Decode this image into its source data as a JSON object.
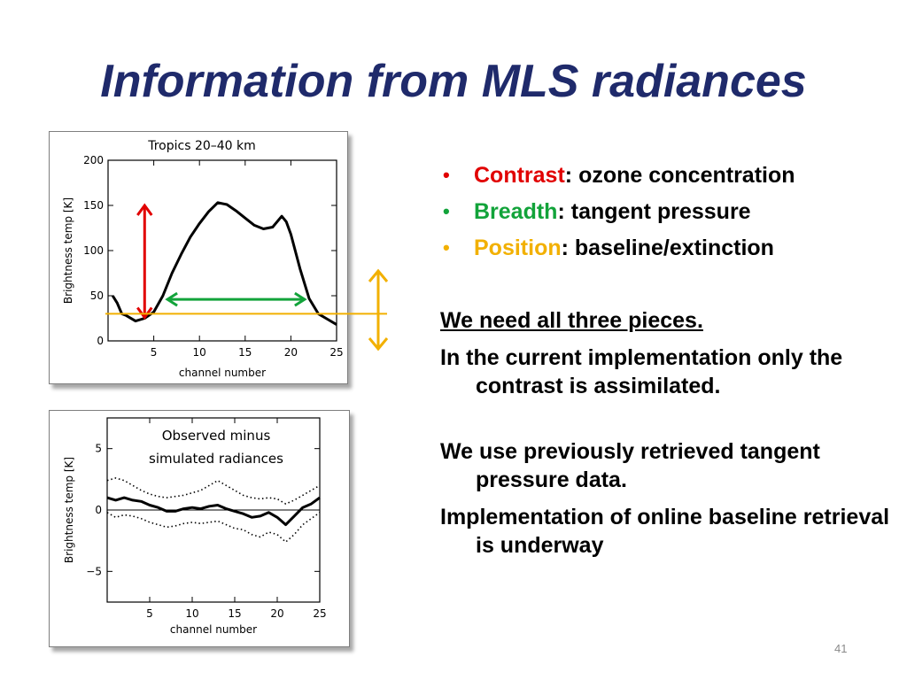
{
  "slide": {
    "title": "Information from MLS radiances",
    "page_number": "41"
  },
  "bullets": [
    {
      "term": "Contrast",
      "rest": ": ozone concentration",
      "color": "#e10000"
    },
    {
      "term": "Breadth",
      "rest": ": tangent pressure",
      "color": "#12a33a"
    },
    {
      "term": "Position",
      "rest": ": baseline/extinction",
      "color": "#f2b000"
    }
  ],
  "paragraphs": {
    "p1": "We need all three pieces.",
    "p2": "In the current implementation only the contrast is assimilated.",
    "p3": "We use previously retrieved tangent pressure data.",
    "p4": "Implementation of online baseline retrieval is underway"
  },
  "chart_data": [
    {
      "type": "line",
      "title": "Tropics   20–40  km",
      "xlabel": "channel number",
      "ylabel": "Brightness temp  [K]",
      "xlim": [
        0,
        25
      ],
      "ylim": [
        0,
        200
      ],
      "xticks": [
        "5",
        "10",
        "15",
        "20",
        "25"
      ],
      "yticks": [
        "0",
        "50",
        "100",
        "150",
        "200"
      ],
      "series": [
        {
          "x": [
            0.5,
            1,
            1.5,
            2,
            3,
            4,
            5,
            6,
            7,
            8,
            9,
            10,
            11,
            12,
            13,
            14,
            15,
            16,
            17,
            18,
            19,
            19.5,
            20,
            21,
            22,
            23,
            24,
            25
          ],
          "values": [
            50,
            42,
            30,
            28,
            22,
            25,
            32,
            50,
            75,
            96,
            115,
            130,
            143,
            153,
            151,
            144,
            136,
            128,
            124,
            126,
            138,
            132,
            118,
            80,
            47,
            30,
            24,
            18
          ]
        }
      ],
      "annotations": {
        "contrast_arrow": {
          "x": 4,
          "y_from": 26,
          "y_to": 150,
          "color": "#e10000"
        },
        "breadth_arrow": {
          "x_from": 6.5,
          "x_to": 21.5,
          "y": 46,
          "color": "#12a33a"
        },
        "baseline_line": {
          "y": 30,
          "color": "#f2b000"
        }
      }
    },
    {
      "type": "line",
      "title": "",
      "xlabel": "channel number",
      "ylabel": "Brightness temp  [K]",
      "xlim": [
        0,
        25
      ],
      "ylim": [
        -7.5,
        7.5
      ],
      "xticks": [
        "5",
        "10",
        "15",
        "20",
        "25"
      ],
      "yticks": [
        "−5",
        "0",
        "5"
      ],
      "legend_text": [
        "Observed minus",
        "simulated radiances"
      ],
      "series": [
        {
          "style": "solid",
          "x": [
            0,
            1,
            2,
            3,
            4,
            5,
            6,
            7,
            8,
            9,
            10,
            11,
            12,
            13,
            14,
            15,
            16,
            17,
            18,
            19,
            20,
            21,
            22,
            23,
            24,
            25
          ],
          "values": [
            1.0,
            0.8,
            1.0,
            0.8,
            0.7,
            0.4,
            0.2,
            -0.1,
            -0.1,
            0.1,
            0.2,
            0.1,
            0.3,
            0.4,
            0.1,
            -0.1,
            -0.3,
            -0.6,
            -0.5,
            -0.2,
            -0.6,
            -1.2,
            -0.5,
            0.2,
            0.5,
            1.0
          ]
        },
        {
          "style": "dotted",
          "x": [
            0,
            1,
            2,
            3,
            4,
            5,
            6,
            7,
            8,
            9,
            10,
            11,
            12,
            13,
            14,
            15,
            16,
            17,
            18,
            19,
            20,
            21,
            22,
            23,
            24,
            25
          ],
          "values": [
            2.4,
            2.6,
            2.4,
            2.0,
            1.6,
            1.3,
            1.1,
            1.0,
            1.1,
            1.2,
            1.4,
            1.6,
            2.0,
            2.4,
            2.0,
            1.6,
            1.2,
            1.0,
            0.9,
            1.0,
            0.9,
            0.5,
            0.8,
            1.2,
            1.6,
            2.0
          ]
        },
        {
          "style": "dotted",
          "x": [
            0,
            1,
            2,
            3,
            4,
            5,
            6,
            7,
            8,
            9,
            10,
            11,
            12,
            13,
            14,
            15,
            16,
            17,
            18,
            19,
            20,
            21,
            22,
            23,
            24,
            25
          ],
          "values": [
            -0.2,
            -0.6,
            -0.4,
            -0.5,
            -0.7,
            -1.0,
            -1.2,
            -1.4,
            -1.3,
            -1.1,
            -1.0,
            -1.1,
            -1.0,
            -0.9,
            -1.2,
            -1.5,
            -1.6,
            -2.0,
            -2.2,
            -1.8,
            -2.0,
            -2.6,
            -2.0,
            -1.2,
            -0.7,
            -0.2
          ]
        }
      ]
    }
  ]
}
